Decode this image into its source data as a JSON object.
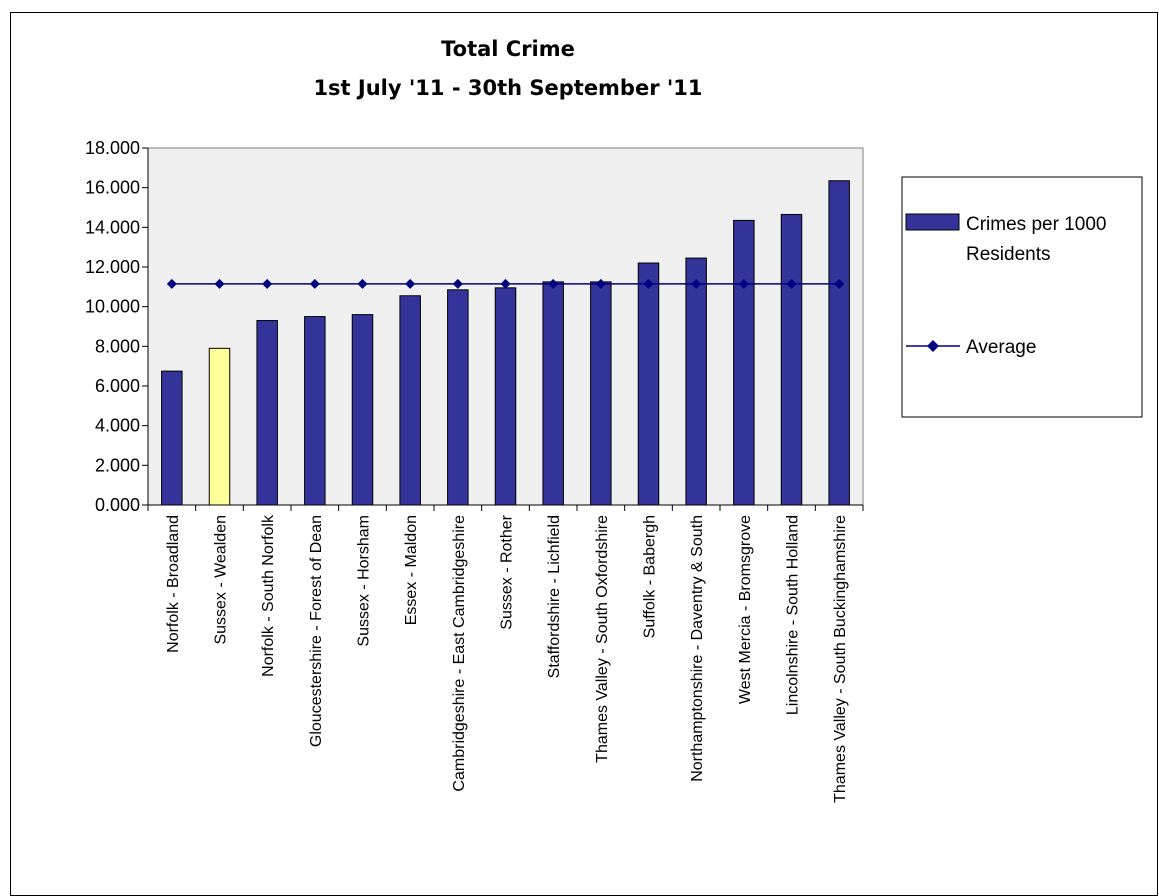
{
  "chart_data": {
    "type": "bar",
    "title": "Total Crime",
    "subtitle": "1st July '11 - 30th September '11",
    "categories": [
      "Norfolk - Broadland",
      "Sussex - Wealden",
      "Norfolk - South Norfolk",
      "Gloucestershire - Forest of Dean",
      "Sussex - Horsham",
      "Essex - Maldon",
      "Cambridgeshire - East Cambridgeshire",
      "Sussex - Rother",
      "Staffordshire - Lichfield",
      "Thames Valley - South Oxfordshire",
      "Suffolk - Babergh",
      "Northamptonshire - Daventry & South",
      "West Mercia - Bromsgrove",
      "Lincolnshire - South Holland",
      "Thames Valley - South Buckinghamshire"
    ],
    "series": [
      {
        "name": "Crimes per 1000 Residents",
        "kind": "bar",
        "color": "#333399",
        "values": [
          6.75,
          7.9,
          9.3,
          9.5,
          9.6,
          10.55,
          10.85,
          10.95,
          11.25,
          11.25,
          12.2,
          12.45,
          14.35,
          14.65,
          16.35
        ]
      },
      {
        "name": "Average",
        "kind": "line",
        "color": "#000080",
        "marker": "diamond",
        "values": [
          11.15,
          11.15,
          11.15,
          11.15,
          11.15,
          11.15,
          11.15,
          11.15,
          11.15,
          11.15,
          11.15,
          11.15,
          11.15,
          11.15,
          11.15
        ]
      }
    ],
    "highlight": {
      "category": "Sussex - Wealden",
      "color": "#FFFF99"
    },
    "ylim": [
      0,
      18
    ],
    "yticks": [
      "0.000",
      "2.000",
      "4.000",
      "6.000",
      "8.000",
      "10.000",
      "12.000",
      "14.000",
      "16.000",
      "18.000"
    ],
    "ytick_values": [
      0,
      2,
      4,
      6,
      8,
      10,
      12,
      14,
      16,
      18
    ],
    "xlabel": "",
    "ylabel": "",
    "grid": false,
    "plot_background": "#f0f0f0",
    "legend_position": "right"
  }
}
